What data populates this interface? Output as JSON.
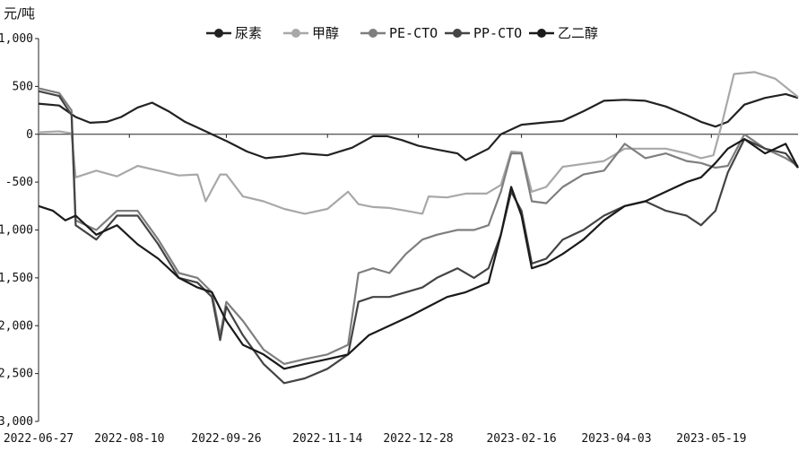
{
  "chart_data": {
    "type": "line",
    "unit_label": "元/吨",
    "ylim": [
      -3000,
      1000
    ],
    "y_ticks": [
      1000,
      500,
      0,
      -500,
      -1000,
      -1500,
      -2000,
      -2500,
      -3000
    ],
    "y_tick_labels": [
      "1,000",
      "500",
      "0",
      "-500",
      "-1,000",
      "-1,500",
      "-2,000",
      "-2,500",
      "-3,000"
    ],
    "x_range": [
      "2022-06-27",
      "2023-06-30"
    ],
    "x_ticks": [
      "2022-06-27",
      "2022-08-10",
      "2022-09-26",
      "2022-11-14",
      "2022-12-28",
      "2023-02-16",
      "2023-04-03",
      "2023-05-19"
    ],
    "grid": false,
    "legend_position": "top",
    "series": [
      {
        "name": "尿素",
        "color": "#222222",
        "points": [
          [
            "2022-06-27",
            320
          ],
          [
            "2022-07-07",
            300
          ],
          [
            "2022-07-15",
            180
          ],
          [
            "2022-07-22",
            120
          ],
          [
            "2022-07-30",
            130
          ],
          [
            "2022-08-06",
            180
          ],
          [
            "2022-08-14",
            280
          ],
          [
            "2022-08-21",
            330
          ],
          [
            "2022-08-29",
            240
          ],
          [
            "2022-09-06",
            130
          ],
          [
            "2022-09-16",
            30
          ],
          [
            "2022-09-26",
            -70
          ],
          [
            "2022-10-06",
            -180
          ],
          [
            "2022-10-15",
            -250
          ],
          [
            "2022-10-24",
            -230
          ],
          [
            "2022-11-02",
            -200
          ],
          [
            "2022-11-14",
            -220
          ],
          [
            "2022-11-26",
            -140
          ],
          [
            "2022-12-06",
            -20
          ],
          [
            "2022-12-13",
            -20
          ],
          [
            "2022-12-20",
            -60
          ],
          [
            "2022-12-28",
            -120
          ],
          [
            "2023-01-06",
            -160
          ],
          [
            "2023-01-16",
            -200
          ],
          [
            "2023-01-20",
            -270
          ],
          [
            "2023-01-31",
            -150
          ],
          [
            "2023-02-06",
            0
          ],
          [
            "2023-02-16",
            100
          ],
          [
            "2023-02-26",
            120
          ],
          [
            "2023-03-08",
            140
          ],
          [
            "2023-03-18",
            240
          ],
          [
            "2023-03-28",
            350
          ],
          [
            "2023-04-07",
            360
          ],
          [
            "2023-04-17",
            350
          ],
          [
            "2023-04-27",
            290
          ],
          [
            "2023-05-07",
            200
          ],
          [
            "2023-05-14",
            130
          ],
          [
            "2023-05-21",
            80
          ],
          [
            "2023-05-27",
            130
          ],
          [
            "2023-06-04",
            310
          ],
          [
            "2023-06-14",
            380
          ],
          [
            "2023-06-24",
            420
          ],
          [
            "2023-06-30",
            380
          ]
        ]
      },
      {
        "name": "甲醇",
        "color": "#a8a8a8",
        "points": [
          [
            "2022-06-27",
            20
          ],
          [
            "2022-07-07",
            30
          ],
          [
            "2022-07-13",
            10
          ],
          [
            "2022-07-15",
            -450
          ],
          [
            "2022-07-25",
            -380
          ],
          [
            "2022-08-04",
            -440
          ],
          [
            "2022-08-14",
            -330
          ],
          [
            "2022-08-24",
            -380
          ],
          [
            "2022-09-03",
            -430
          ],
          [
            "2022-09-12",
            -420
          ],
          [
            "2022-09-16",
            -700
          ],
          [
            "2022-09-23",
            -420
          ],
          [
            "2022-09-26",
            -420
          ],
          [
            "2022-10-04",
            -650
          ],
          [
            "2022-10-14",
            -700
          ],
          [
            "2022-10-24",
            -780
          ],
          [
            "2022-11-03",
            -830
          ],
          [
            "2022-11-14",
            -780
          ],
          [
            "2022-11-24",
            -600
          ],
          [
            "2022-11-29",
            -730
          ],
          [
            "2022-12-06",
            -760
          ],
          [
            "2022-12-14",
            -770
          ],
          [
            "2022-12-22",
            -800
          ],
          [
            "2022-12-30",
            -830
          ],
          [
            "2023-01-02",
            -650
          ],
          [
            "2023-01-11",
            -660
          ],
          [
            "2023-01-20",
            -620
          ],
          [
            "2023-01-30",
            -620
          ],
          [
            "2023-02-06",
            -530
          ],
          [
            "2023-02-11",
            -180
          ],
          [
            "2023-02-16",
            -190
          ],
          [
            "2023-02-21",
            -600
          ],
          [
            "2023-02-28",
            -550
          ],
          [
            "2023-03-08",
            -340
          ],
          [
            "2023-03-18",
            -310
          ],
          [
            "2023-03-28",
            -280
          ],
          [
            "2023-04-07",
            -150
          ],
          [
            "2023-04-17",
            -150
          ],
          [
            "2023-04-27",
            -150
          ],
          [
            "2023-05-07",
            -200
          ],
          [
            "2023-05-14",
            -250
          ],
          [
            "2023-05-20",
            -220
          ],
          [
            "2023-05-24",
            100
          ],
          [
            "2023-05-30",
            630
          ],
          [
            "2023-06-09",
            650
          ],
          [
            "2023-06-19",
            580
          ],
          [
            "2023-06-30",
            390
          ]
        ]
      },
      {
        "name": "PE-CTO",
        "color": "#7e7e7e",
        "points": [
          [
            "2022-06-27",
            480
          ],
          [
            "2022-07-07",
            430
          ],
          [
            "2022-07-13",
            250
          ],
          [
            "2022-07-15",
            -900
          ],
          [
            "2022-07-25",
            -1000
          ],
          [
            "2022-08-04",
            -800
          ],
          [
            "2022-08-14",
            -800
          ],
          [
            "2022-08-24",
            -1100
          ],
          [
            "2022-09-03",
            -1450
          ],
          [
            "2022-09-12",
            -1500
          ],
          [
            "2022-09-19",
            -1650
          ],
          [
            "2022-09-23",
            -2100
          ],
          [
            "2022-09-26",
            -1750
          ],
          [
            "2022-10-04",
            -1950
          ],
          [
            "2022-10-14",
            -2250
          ],
          [
            "2022-10-24",
            -2400
          ],
          [
            "2022-11-03",
            -2350
          ],
          [
            "2022-11-14",
            -2300
          ],
          [
            "2022-11-24",
            -2200
          ],
          [
            "2022-11-29",
            -1450
          ],
          [
            "2022-12-06",
            -1400
          ],
          [
            "2022-12-14",
            -1450
          ],
          [
            "2022-12-22",
            -1250
          ],
          [
            "2022-12-30",
            -1100
          ],
          [
            "2023-01-06",
            -1050
          ],
          [
            "2023-01-16",
            -1000
          ],
          [
            "2023-01-24",
            -1000
          ],
          [
            "2023-01-31",
            -950
          ],
          [
            "2023-02-06",
            -600
          ],
          [
            "2023-02-11",
            -200
          ],
          [
            "2023-02-16",
            -200
          ],
          [
            "2023-02-21",
            -700
          ],
          [
            "2023-02-28",
            -720
          ],
          [
            "2023-03-08",
            -550
          ],
          [
            "2023-03-18",
            -420
          ],
          [
            "2023-03-28",
            -380
          ],
          [
            "2023-04-07",
            -100
          ],
          [
            "2023-04-17",
            -250
          ],
          [
            "2023-04-27",
            -200
          ],
          [
            "2023-05-07",
            -280
          ],
          [
            "2023-05-14",
            -300
          ],
          [
            "2023-05-21",
            -350
          ],
          [
            "2023-05-27",
            -330
          ],
          [
            "2023-06-04",
            0
          ],
          [
            "2023-06-14",
            -150
          ],
          [
            "2023-06-24",
            -250
          ],
          [
            "2023-06-30",
            -330
          ]
        ]
      },
      {
        "name": "PP-CTO",
        "color": "#444444",
        "points": [
          [
            "2022-06-27",
            450
          ],
          [
            "2022-07-07",
            400
          ],
          [
            "2022-07-13",
            200
          ],
          [
            "2022-07-15",
            -950
          ],
          [
            "2022-07-25",
            -1100
          ],
          [
            "2022-08-04",
            -850
          ],
          [
            "2022-08-14",
            -850
          ],
          [
            "2022-08-24",
            -1150
          ],
          [
            "2022-09-03",
            -1500
          ],
          [
            "2022-09-12",
            -1550
          ],
          [
            "2022-09-19",
            -1700
          ],
          [
            "2022-09-23",
            -2150
          ],
          [
            "2022-09-26",
            -1800
          ],
          [
            "2022-10-04",
            -2100
          ],
          [
            "2022-10-14",
            -2400
          ],
          [
            "2022-10-24",
            -2600
          ],
          [
            "2022-11-03",
            -2550
          ],
          [
            "2022-11-14",
            -2450
          ],
          [
            "2022-11-24",
            -2300
          ],
          [
            "2022-11-29",
            -1750
          ],
          [
            "2022-12-06",
            -1700
          ],
          [
            "2022-12-14",
            -1700
          ],
          [
            "2022-12-22",
            -1650
          ],
          [
            "2022-12-30",
            -1600
          ],
          [
            "2023-01-06",
            -1500
          ],
          [
            "2023-01-16",
            -1400
          ],
          [
            "2023-01-24",
            -1500
          ],
          [
            "2023-01-31",
            -1400
          ],
          [
            "2023-02-06",
            -1050
          ],
          [
            "2023-02-11",
            -600
          ],
          [
            "2023-02-16",
            -800
          ],
          [
            "2023-02-21",
            -1350
          ],
          [
            "2023-02-28",
            -1300
          ],
          [
            "2023-03-08",
            -1100
          ],
          [
            "2023-03-18",
            -1000
          ],
          [
            "2023-03-28",
            -850
          ],
          [
            "2023-04-07",
            -750
          ],
          [
            "2023-04-17",
            -700
          ],
          [
            "2023-04-27",
            -800
          ],
          [
            "2023-05-07",
            -850
          ],
          [
            "2023-05-14",
            -950
          ],
          [
            "2023-05-21",
            -800
          ],
          [
            "2023-05-27",
            -400
          ],
          [
            "2023-06-04",
            -50
          ],
          [
            "2023-06-14",
            -150
          ],
          [
            "2023-06-24",
            -200
          ],
          [
            "2023-06-30",
            -350
          ]
        ]
      },
      {
        "name": "乙二醇",
        "color": "#1a1a1a",
        "points": [
          [
            "2022-06-27",
            -750
          ],
          [
            "2022-07-04",
            -800
          ],
          [
            "2022-07-10",
            -900
          ],
          [
            "2022-07-15",
            -850
          ],
          [
            "2022-07-25",
            -1050
          ],
          [
            "2022-08-04",
            -950
          ],
          [
            "2022-08-14",
            -1150
          ],
          [
            "2022-08-24",
            -1300
          ],
          [
            "2022-09-03",
            -1500
          ],
          [
            "2022-09-12",
            -1600
          ],
          [
            "2022-09-19",
            -1650
          ],
          [
            "2022-09-26",
            -1950
          ],
          [
            "2022-10-04",
            -2200
          ],
          [
            "2022-10-14",
            -2300
          ],
          [
            "2022-10-24",
            -2450
          ],
          [
            "2022-11-03",
            -2400
          ],
          [
            "2022-11-14",
            -2350
          ],
          [
            "2022-11-24",
            -2300
          ],
          [
            "2022-12-04",
            -2100
          ],
          [
            "2022-12-14",
            -2000
          ],
          [
            "2022-12-24",
            -1900
          ],
          [
            "2023-01-02",
            -1800
          ],
          [
            "2023-01-11",
            -1700
          ],
          [
            "2023-01-20",
            -1650
          ],
          [
            "2023-01-31",
            -1550
          ],
          [
            "2023-02-06",
            -1050
          ],
          [
            "2023-02-11",
            -550
          ],
          [
            "2023-02-16",
            -850
          ],
          [
            "2023-02-21",
            -1400
          ],
          [
            "2023-02-28",
            -1350
          ],
          [
            "2023-03-08",
            -1250
          ],
          [
            "2023-03-18",
            -1100
          ],
          [
            "2023-03-28",
            -900
          ],
          [
            "2023-04-07",
            -750
          ],
          [
            "2023-04-17",
            -700
          ],
          [
            "2023-04-27",
            -600
          ],
          [
            "2023-05-07",
            -500
          ],
          [
            "2023-05-14",
            -450
          ],
          [
            "2023-05-21",
            -300
          ],
          [
            "2023-05-27",
            -150
          ],
          [
            "2023-06-04",
            -50
          ],
          [
            "2023-06-14",
            -200
          ],
          [
            "2023-06-24",
            -100
          ],
          [
            "2023-06-30",
            -350
          ]
        ]
      }
    ]
  }
}
